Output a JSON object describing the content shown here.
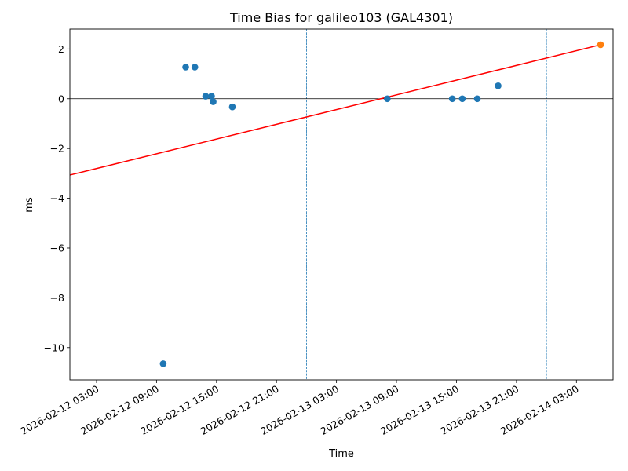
{
  "chart_data": {
    "type": "scatter",
    "title": "Time Bias for galileo103 (GAL4301)",
    "xlabel": "Time",
    "ylabel": "ms",
    "x_type": "datetime",
    "xlim": [
      "2026-02-12T00:20:00",
      "2026-02-14T06:40:00"
    ],
    "ylim": [
      -11.3,
      2.8
    ],
    "x_ticks": [
      {
        "value": "2026-02-12T03:00:00",
        "label": "2026-02-12 03:00"
      },
      {
        "value": "2026-02-12T09:00:00",
        "label": "2026-02-12 09:00"
      },
      {
        "value": "2026-02-12T15:00:00",
        "label": "2026-02-12 15:00"
      },
      {
        "value": "2026-02-12T21:00:00",
        "label": "2026-02-12 21:00"
      },
      {
        "value": "2026-02-13T03:00:00",
        "label": "2026-02-13 03:00"
      },
      {
        "value": "2026-02-13T09:00:00",
        "label": "2026-02-13 09:00"
      },
      {
        "value": "2026-02-13T15:00:00",
        "label": "2026-02-13 15:00"
      },
      {
        "value": "2026-02-13T21:00:00",
        "label": "2026-02-13 21:00"
      },
      {
        "value": "2026-02-14T03:00:00",
        "label": "2026-02-14 03:00"
      }
    ],
    "y_ticks": [
      {
        "value": 2,
        "label": "2"
      },
      {
        "value": 0,
        "label": "0"
      },
      {
        "value": -2,
        "label": "−2"
      },
      {
        "value": -4,
        "label": "−4"
      },
      {
        "value": -6,
        "label": "−6"
      },
      {
        "value": -8,
        "label": "−8"
      },
      {
        "value": -10,
        "label": "−10"
      }
    ],
    "series": [
      {
        "type": "scatter",
        "color": "#1f77b4",
        "points": [
          {
            "x": "2026-02-12T09:40:00",
            "y": -10.65
          },
          {
            "x": "2026-02-12T11:55:00",
            "y": 1.27
          },
          {
            "x": "2026-02-12T12:50:00",
            "y": 1.27
          },
          {
            "x": "2026-02-12T13:55:00",
            "y": 0.1
          },
          {
            "x": "2026-02-12T14:30:00",
            "y": 0.1
          },
          {
            "x": "2026-02-12T14:40:00",
            "y": -0.12
          },
          {
            "x": "2026-02-12T16:35:00",
            "y": -0.33
          },
          {
            "x": "2026-02-13T08:05:00",
            "y": 0.0
          },
          {
            "x": "2026-02-13T14:35:00",
            "y": 0.0
          },
          {
            "x": "2026-02-13T15:35:00",
            "y": 0.0
          },
          {
            "x": "2026-02-13T17:05:00",
            "y": 0.0
          },
          {
            "x": "2026-02-13T19:10:00",
            "y": 0.52
          }
        ]
      },
      {
        "type": "scatter",
        "color": "#ff7f0e",
        "points": [
          {
            "x": "2026-02-14T05:25:00",
            "y": 2.17
          }
        ]
      },
      {
        "type": "line",
        "color": "#ff0000",
        "points": [
          {
            "x": "2026-02-12T00:00:00",
            "y": -3.1
          },
          {
            "x": "2026-02-14T05:25:00",
            "y": 2.17
          }
        ]
      }
    ],
    "vertical_lines": [
      {
        "x": "2026-02-12T00:00:00",
        "style": "dashed",
        "color": "#1f77b4"
      },
      {
        "x": "2026-02-13T00:00:00",
        "style": "dashed",
        "color": "#1f77b4"
      },
      {
        "x": "2026-02-14T00:00:00",
        "style": "dashed",
        "color": "#1f77b4"
      }
    ],
    "horizontal_lines": [
      {
        "y": 0,
        "style": "solid",
        "color": "#000000"
      }
    ],
    "grid": false,
    "legend": "none"
  }
}
